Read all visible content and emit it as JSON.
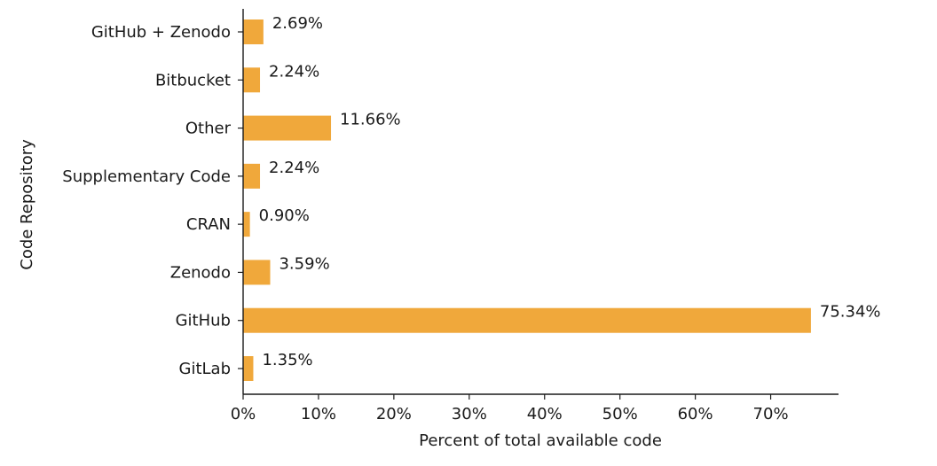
{
  "chart_data": {
    "type": "bar",
    "orientation": "horizontal",
    "categories": [
      "GitHub + Zenodo",
      "Bitbucket",
      "Other",
      "Supplementary Code",
      "CRAN",
      "Zenodo",
      "GitHub",
      "GitLab"
    ],
    "values": [
      2.69,
      2.24,
      11.66,
      2.24,
      0.9,
      3.59,
      75.34,
      1.35
    ],
    "value_labels": [
      "2.69%",
      "2.24%",
      "11.66%",
      "2.24%",
      "0.90%",
      "3.59%",
      "75.34%",
      "1.35%"
    ],
    "xlabel": "Percent of total available code",
    "ylabel": "Code Repository",
    "xlim": [
      0,
      79
    ],
    "xticks": [
      0,
      10,
      20,
      30,
      40,
      50,
      60,
      70
    ],
    "xtick_labels": [
      "0%",
      "10%",
      "20%",
      "30%",
      "40%",
      "50%",
      "60%",
      "70%"
    ],
    "bar_color": "#f0a83b",
    "grid": false
  }
}
